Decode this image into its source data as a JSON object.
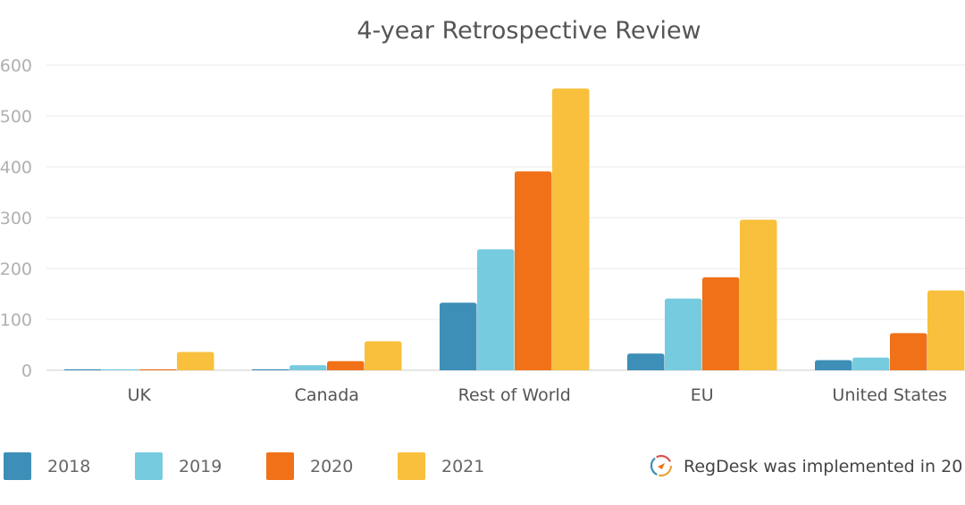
{
  "chart_data": {
    "type": "bar",
    "title": "4-year Retrospective Review",
    "categories": [
      "UK",
      "Canada",
      "Rest of World",
      "EU",
      "United States"
    ],
    "series": [
      {
        "name": "2018",
        "color": "#3d8fb8",
        "values": [
          2,
          2,
          133,
          33,
          20
        ]
      },
      {
        "name": "2019",
        "color": "#76cbdf",
        "values": [
          2,
          10,
          238,
          141,
          25
        ]
      },
      {
        "name": "2020",
        "color": "#f07117",
        "values": [
          2,
          18,
          391,
          183,
          73
        ]
      },
      {
        "name": "2021",
        "color": "#f8c03c",
        "values": [
          36,
          57,
          554,
          296,
          157
        ]
      }
    ],
    "y_ticks": [
      "0",
      "100",
      "200",
      "300",
      "400",
      "500",
      "600"
    ],
    "ylim": [
      0,
      600
    ],
    "xlabel": "",
    "ylabel": "",
    "grid": true,
    "legend_position": "bottom"
  },
  "note": {
    "icon": "regdesk-logo-icon",
    "text": "RegDesk was implemented in 20"
  }
}
